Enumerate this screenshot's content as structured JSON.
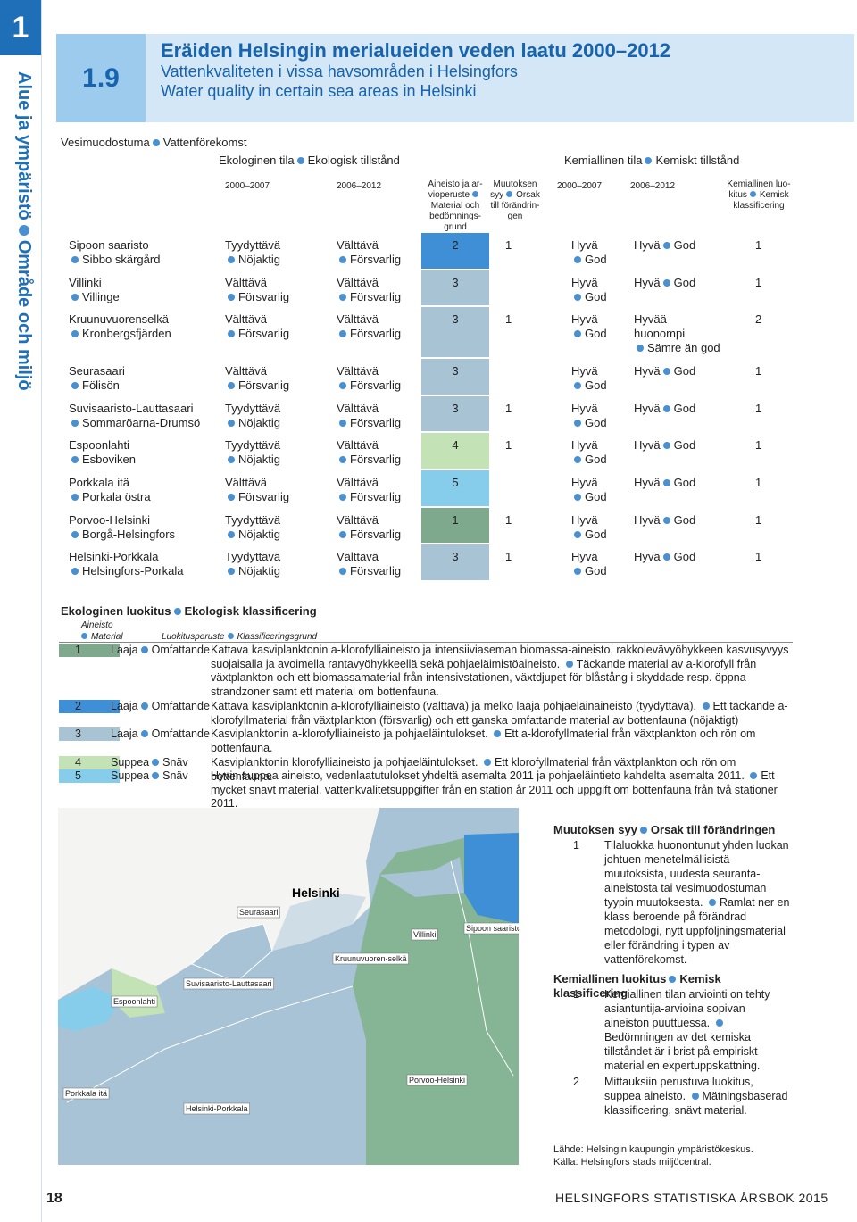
{
  "sidebar": {
    "number": "1",
    "section_fi": "Alue ja ympäristö",
    "section_sv": "Område och miljö"
  },
  "header": {
    "number": "1.9",
    "title_fi": "Eräiden Helsingin merialueiden veden laatu 2000–2012",
    "title_sv": "Vattenkvaliteten i vissa havsområden i Helsingfors",
    "title_en": "Water quality in certain sea areas in Helsinki"
  },
  "table": {
    "area_heading": [
      "Vesimuodostuma",
      "Vattenförekomst"
    ],
    "eco_heading": [
      "Ekologinen tila",
      "Ekologisk tillstånd"
    ],
    "chem_heading": [
      "Kemiallinen tila",
      "Kemiskt tillstånd"
    ],
    "columns": {
      "eco_1": "2000–2007",
      "eco_2": "2006–2012",
      "material": [
        "Aineisto ja ar-vioperuste",
        "Material och bedömnings-grund"
      ],
      "change": [
        "Muutoksen syy",
        "Orsak till förändrin-gen"
      ],
      "chem_1": "2000–2007",
      "chem_2": "2006–2012",
      "chem_class": [
        "Kemiallinen luo-kitus",
        "Kemisk klassificering"
      ]
    },
    "rows": [
      {
        "area": [
          "Sipoon saaristo",
          "Sibbo skärgård"
        ],
        "eco_1": [
          "Tyydyttävä",
          "Nöjaktig"
        ],
        "eco_2": [
          "Välttävä",
          "Försvarlig"
        ],
        "material": 2,
        "change": 1,
        "chem_1": [
          "Hyvä",
          "God"
        ],
        "chem_2": [
          "Hyvä",
          "God"
        ],
        "chem_class": 1
      },
      {
        "area": [
          "Villinki",
          "Villinge"
        ],
        "eco_1": [
          "Välttävä",
          "Försvarlig"
        ],
        "eco_2": [
          "Välttävä",
          "Försvarlig"
        ],
        "material": 3,
        "chem_1": [
          "Hyvä",
          "God"
        ],
        "chem_2": [
          "Hyvä",
          "God"
        ],
        "chem_class": 1
      },
      {
        "area": [
          "Kruunuvuorenselkä",
          "Kronbergsfjärden"
        ],
        "eco_1": [
          "Välttävä",
          "Försvarlig"
        ],
        "eco_2": [
          "Välttävä",
          "Försvarlig"
        ],
        "material": 3,
        "change": 1,
        "chem_1": [
          "Hyvä",
          "God"
        ],
        "chem_2": [
          "Hyvää huonompi",
          "Sämre än god"
        ],
        "chem_class": 2
      },
      {
        "area": [
          "Seurasaari",
          "Fölisön"
        ],
        "eco_1": [
          "Välttävä",
          "Försvarlig"
        ],
        "eco_2": [
          "Välttävä",
          "Försvarlig"
        ],
        "material": 3,
        "chem_1": [
          "Hyvä",
          "God"
        ],
        "chem_2": [
          "Hyvä",
          "God"
        ],
        "chem_class": 1
      },
      {
        "area": [
          "Suvisaaristo-Lauttasaari",
          "Sommaröarna-Drumsö"
        ],
        "eco_1": [
          "Tyydyttävä",
          "Nöjaktig"
        ],
        "eco_2": [
          "Välttävä",
          "Försvarlig"
        ],
        "material": 3,
        "change": 1,
        "chem_1": [
          "Hyvä",
          "God"
        ],
        "chem_2": [
          "Hyvä",
          "God"
        ],
        "chem_class": 1
      },
      {
        "area": [
          "Espoonlahti",
          "Esboviken"
        ],
        "eco_1": [
          "Tyydyttävä",
          "Nöjaktig"
        ],
        "eco_2": [
          "Välttävä",
          "Försvarlig"
        ],
        "material": 4,
        "change": 1,
        "chem_1": [
          "Hyvä",
          "God"
        ],
        "chem_2": [
          "Hyvä",
          "God"
        ],
        "chem_class": 1
      },
      {
        "area": [
          "Porkkala itä",
          "Porkala östra"
        ],
        "eco_1": [
          "Välttävä",
          "Försvarlig"
        ],
        "eco_2": [
          "Välttävä",
          "Försvarlig"
        ],
        "material": 5,
        "chem_1": [
          "Hyvä",
          "God"
        ],
        "chem_2": [
          "Hyvä",
          "God"
        ],
        "chem_class": 1
      },
      {
        "area": [
          "Porvoo-Helsinki",
          "Borgå-Helsingfors"
        ],
        "eco_1": [
          "Tyydyttävä",
          "Nöjaktig"
        ],
        "eco_2": [
          "Välttävä",
          "Försvarlig"
        ],
        "material": 1,
        "change": 1,
        "chem_1": [
          "Hyvä",
          "God"
        ],
        "chem_2": [
          "Hyvä",
          "God"
        ],
        "chem_class": 1
      },
      {
        "area": [
          "Helsinki-Porkkala",
          "Helsingfors-Porkala"
        ],
        "eco_1": [
          "Tyydyttävä",
          "Nöjaktig"
        ],
        "eco_2": [
          "Välttävä",
          "Försvarlig"
        ],
        "material": 3,
        "change": 1,
        "chem_1": [
          "Hyvä",
          "God"
        ],
        "chem_2": [
          "Hyvä",
          "God"
        ],
        "chem_class": 1
      }
    ]
  },
  "legend": {
    "title": [
      "Ekologinen luokitus",
      "Ekologisk klassificering"
    ],
    "material_heading": [
      "Aineisto",
      "Material"
    ],
    "basis_heading": [
      "Luokitusperuste",
      "Klassificeringsgrund"
    ],
    "items": [
      {
        "number": 1,
        "color": "#7fa98c",
        "scope": [
          "Laaja",
          "Omfattande"
        ],
        "text_fi": "Kattava kasviplanktonin a-klorofylliaineisto ja intensiiviaseman biomassa-aineisto, rakkolevävyöhykkeen kasvusyvyys suojaisalla ja avoimella rantavyöhykkeellä sekä pohjaeläimistöaineisto.",
        "text_sv": "Täckande material av a-klorofyll från växtplankton och ett biomassamaterial från intensivstationen, växtdjupet för blåstång i skyddade resp. öppna strandzoner samt ett material om bottenfauna."
      },
      {
        "number": 2,
        "color": "#3f8fd6",
        "scope": [
          "Laaja",
          "Omfattande"
        ],
        "text_fi": "Kattava kasviplanktonin a-klorofylliaineisto (välttävä) ja melko laaja pohjaeläinaineisto (tyydyttävä).",
        "text_sv": "Ett täckande a-klorofyllmaterial från växtplankton (försvarlig) och ett ganska omfattande material av bottenfauna (nöjaktigt)"
      },
      {
        "number": 3,
        "color": "#a7c3d4",
        "scope": [
          "Laaja",
          "Omfattande"
        ],
        "text_fi": "Kasviplanktonin a-klorofylliaineisto ja pohjaeläintulokset.",
        "text_sv": "Ett a-klorofyllmaterial från växtplankton och rön om bottenfauna."
      },
      {
        "number": 4,
        "color": "#c3e2b5",
        "scope": [
          "Suppea",
          "Snäv"
        ],
        "text_fi": "Kasviplanktonin klorofylliaineisto ja pohjaeläintulokset.",
        "text_sv": "Ett klorofyllmaterial från växtplankton och rön om bottenfauna."
      },
      {
        "number": 5,
        "color": "#86cdeb",
        "scope": [
          "Suppea",
          "Snäv"
        ],
        "text_fi": "Hyvin suppea aineisto, vedenlaatutulokset yhdeltä asemalta 2011 ja pohjaeläintieto kahdelta asemalta 2011.",
        "text_sv": "Ett mycket snävt material, vattenkvalitetsuppgifter från en station år 2011 och uppgift om bottenfauna från två stationer 2011."
      }
    ]
  },
  "notes": {
    "change": {
      "title": [
        "Muutoksen syy",
        "Orsak till förändringen"
      ],
      "items": [
        {
          "number": 1,
          "text_fi": "Tilaluokka huonontunut yhden luokan johtuen menetelmällisistä muutoksista, uudesta seuranta-aineistosta tai vesimuodostuman tyypin muutoksesta.",
          "text_sv": "Ramlat ner en klass beroende på förändrad metodologi, nytt uppföljningsmaterial eller förändring i typen av vattenförekomst."
        }
      ]
    },
    "chem": {
      "title": [
        "Kemiallinen luokitus",
        "Kemisk klassificering"
      ],
      "items": [
        {
          "number": 1,
          "text_fi": "Kemiallinen tilan arviointi on tehty asiantuntija-arvioina sopivan aineiston puuttuessa.",
          "text_sv": "Bedömningen av det kemiska tillståndet är i brist på empiriskt material en expertuppskattning."
        },
        {
          "number": 2,
          "text_fi": "Mittauksiin perustuva luokitus, suppea aineisto.",
          "text_sv": "Mätningsbaserad klassificering, snävt material."
        }
      ]
    },
    "source": [
      "Lähde: Helsingin kaupungin ympäristökeskus.",
      "Källa: Helsingfors stads miljöcentral."
    ]
  },
  "map": {
    "city": "Helsinki",
    "labels": [
      "Seurasaari",
      "Villinki",
      "Sipoon saaristo",
      "Kruunuvuoren-selkä",
      "Suvisaaristo-Lauttasaari",
      "Espoonlahti",
      "Porkkala itä",
      "Helsinki-Porkkala",
      "Porvoo-Helsinki"
    ]
  },
  "footer": {
    "page": "18",
    "publication": "HELSINGFORS STATISTISKA ÅRSBOK 2015"
  }
}
